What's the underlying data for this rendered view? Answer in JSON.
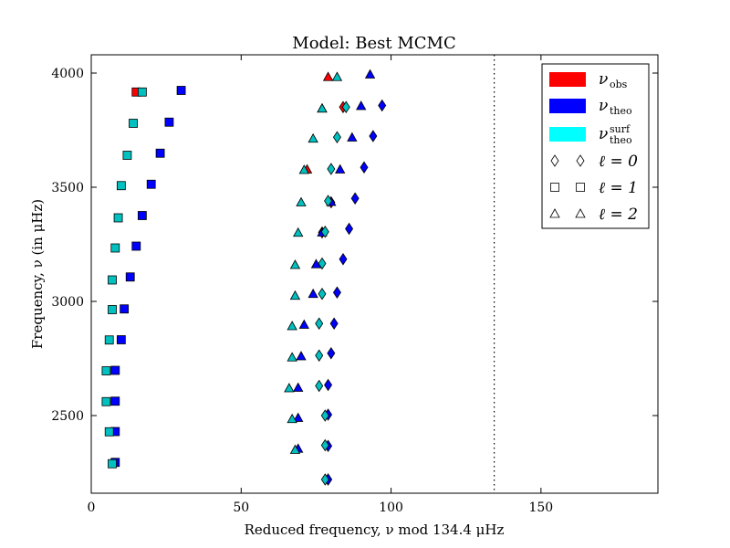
{
  "chart_data": {
    "type": "scatter",
    "title": "Model: Best MCMC",
    "xlabel": "Reduced frequency, ν mod 134.4 μHz",
    "ylabel": "Frequency, ν (in μHz)",
    "xlim": [
      0,
      189
    ],
    "ylim": [
      2160,
      4080
    ],
    "xticks": [
      0,
      50,
      100,
      150
    ],
    "yticks": [
      2500,
      3000,
      3500,
      4000
    ],
    "vline_x": 134.4,
    "vline_style": "dotted",
    "grid": false,
    "legend_position": "top-right",
    "colors": {
      "obs": "#ff0000",
      "theo": "#0000ff",
      "surf": "#00c0c0"
    },
    "legend": {
      "entries": [
        {
          "symbol": "ν",
          "sub": "obs",
          "sup": "",
          "color": "#ff0000"
        },
        {
          "symbol": "ν",
          "sub": "theo",
          "sup": "",
          "color": "#0000ff"
        },
        {
          "symbol": "ν",
          "sub": "theo",
          "sup": "surf",
          "color": "#00ffff"
        }
      ],
      "markers": [
        {
          "label": "ℓ = 0",
          "marker": "diamond"
        },
        {
          "label": "ℓ = 1",
          "marker": "square"
        },
        {
          "label": "ℓ = 2",
          "marker": "triangle"
        }
      ]
    },
    "series": [
      {
        "name": "ν obs",
        "marker": "diamond",
        "color": "#ff0000",
        "points": [
          [
            84,
            3851
          ],
          [
            80,
            3434
          ],
          [
            77,
            3302
          ],
          [
            79,
            2220
          ]
        ]
      },
      {
        "name": "ν obs",
        "marker": "square",
        "color": "#ff0000",
        "points": [
          [
            15,
            3917
          ]
        ]
      },
      {
        "name": "ν obs",
        "marker": "triangle",
        "color": "#ff0000",
        "points": [
          [
            79,
            3983
          ],
          [
            77,
            3845
          ],
          [
            72,
            3578
          ]
        ]
      },
      {
        "name": "ν theo",
        "marker": "diamond",
        "color": "#0000ff",
        "points": [
          [
            97,
            3858
          ],
          [
            94,
            3724
          ],
          [
            91,
            3587
          ],
          [
            88,
            3451
          ],
          [
            86,
            3318
          ],
          [
            84,
            3185
          ],
          [
            82,
            3039
          ],
          [
            81,
            2903
          ],
          [
            80,
            2773
          ],
          [
            79,
            2634
          ],
          [
            79,
            2504
          ],
          [
            79,
            2367
          ],
          [
            79,
            2220
          ]
        ]
      },
      {
        "name": "ν theo",
        "marker": "square",
        "color": "#0000ff",
        "points": [
          [
            30,
            3924
          ],
          [
            26,
            3785
          ],
          [
            23,
            3649
          ],
          [
            20,
            3513
          ],
          [
            17,
            3376
          ],
          [
            15,
            3242
          ],
          [
            13,
            3107
          ],
          [
            11,
            2967
          ],
          [
            10,
            2832
          ],
          [
            8,
            2698
          ],
          [
            8,
            2563
          ],
          [
            8,
            2430
          ],
          [
            8,
            2295
          ]
        ]
      },
      {
        "name": "ν theo",
        "marker": "triangle",
        "color": "#0000ff",
        "points": [
          [
            93,
            3994
          ],
          [
            90,
            3856
          ],
          [
            87,
            3718
          ],
          [
            83,
            3578
          ],
          [
            80,
            3436
          ],
          [
            77,
            3302
          ],
          [
            75,
            3163
          ],
          [
            74,
            3033
          ],
          [
            71,
            2898
          ],
          [
            70,
            2760
          ],
          [
            69,
            2622
          ],
          [
            69,
            2490
          ],
          [
            69,
            2355
          ]
        ]
      },
      {
        "name": "ν surf theo",
        "marker": "diamond",
        "color": "#00c0c0",
        "points": [
          [
            85,
            3851
          ],
          [
            82,
            3719
          ],
          [
            80,
            3580
          ],
          [
            79,
            3440
          ],
          [
            78,
            3305
          ],
          [
            77,
            3166
          ],
          [
            77,
            3033
          ],
          [
            76,
            2903
          ],
          [
            76,
            2763
          ],
          [
            76,
            2630
          ],
          [
            78,
            2500
          ],
          [
            78,
            2370
          ],
          [
            78,
            2220
          ]
        ]
      },
      {
        "name": "ν surf theo",
        "marker": "square",
        "color": "#00c0c0",
        "points": [
          [
            17,
            3917
          ],
          [
            14,
            3780
          ],
          [
            12,
            3640
          ],
          [
            10,
            3507
          ],
          [
            9,
            3366
          ],
          [
            8,
            3234
          ],
          [
            7,
            3094
          ],
          [
            7,
            2964
          ],
          [
            6,
            2831
          ],
          [
            5,
            2696
          ],
          [
            5,
            2561
          ],
          [
            6,
            2429
          ],
          [
            7,
            2289
          ]
        ]
      },
      {
        "name": "ν surf theo",
        "marker": "triangle",
        "color": "#00c0c0",
        "points": [
          [
            82,
            3983
          ],
          [
            77,
            3845
          ],
          [
            74,
            3713
          ],
          [
            71,
            3576
          ],
          [
            70,
            3434
          ],
          [
            69,
            3301
          ],
          [
            68,
            3160
          ],
          [
            68,
            3025
          ],
          [
            67,
            2892
          ],
          [
            67,
            2755
          ],
          [
            66,
            2620
          ],
          [
            67,
            2485
          ],
          [
            68,
            2350
          ]
        ]
      }
    ]
  }
}
